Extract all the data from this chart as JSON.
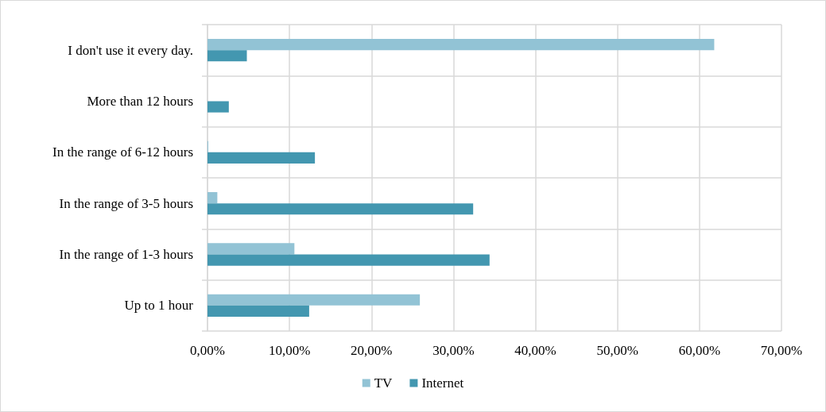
{
  "chart_data": {
    "type": "bar",
    "orientation": "horizontal",
    "categories": [
      "I don't use it every day.",
      "More than 12 hours",
      "In the range of 6-12 hours",
      "In the range of 3-5 hours",
      "In the range of 1-3 hours",
      "Up to 1 hour"
    ],
    "series": [
      {
        "name": "TV",
        "color": "#92c3d5",
        "values": [
          61.8,
          0,
          0.1,
          1.2,
          10.6,
          25.9
        ]
      },
      {
        "name": "Internet",
        "color": "#4397b0",
        "values": [
          4.8,
          2.6,
          13.1,
          32.4,
          34.4,
          12.4
        ]
      }
    ],
    "xlim": [
      0,
      70
    ],
    "xticks": [
      {
        "value": 0,
        "label": "0,00%"
      },
      {
        "value": 10,
        "label": "10,00%"
      },
      {
        "value": 20,
        "label": "20,00%"
      },
      {
        "value": 30,
        "label": "30,00%"
      },
      {
        "value": 40,
        "label": "40,00%"
      },
      {
        "value": 50,
        "label": "50,00%"
      },
      {
        "value": 60,
        "label": "60,00%"
      },
      {
        "value": 70,
        "label": "70,00%"
      }
    ],
    "grid": true,
    "legend": "bottom"
  }
}
